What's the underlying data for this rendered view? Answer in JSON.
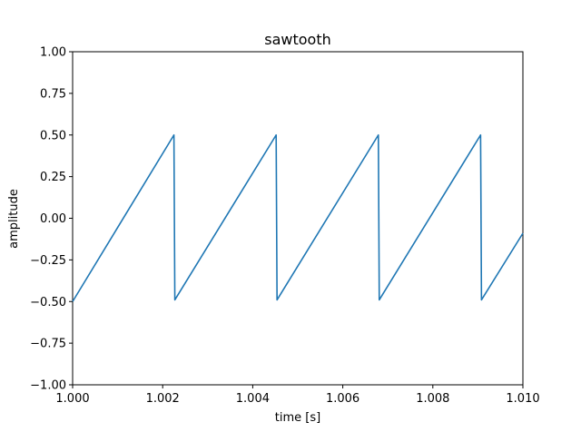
{
  "chart_data": {
    "type": "line",
    "title": "sawtooth",
    "xlabel": "time [s]",
    "ylabel": "amplitude",
    "xlim": [
      1.0,
      1.01
    ],
    "ylim": [
      -1.0,
      1.0
    ],
    "grid": false,
    "x_ticks": [
      1.0,
      1.002,
      1.004,
      1.006,
      1.008,
      1.01
    ],
    "x_tick_labels": [
      "1.000",
      "1.002",
      "1.004",
      "1.006",
      "1.008",
      "1.010"
    ],
    "y_ticks": [
      1.0,
      0.75,
      0.5,
      0.25,
      0.0,
      -0.25,
      -0.5,
      -0.75,
      -1.0
    ],
    "y_tick_labels": [
      "1.00",
      "0.75",
      "0.50",
      "0.25",
      "0.00",
      "−0.25",
      "−0.50",
      "−0.75",
      "−1.00"
    ],
    "series": [
      {
        "name": "sawtooth",
        "color": "#1f77b4",
        "x": [
          1.0,
          1.00225,
          1.00227,
          1.00452,
          1.00454,
          1.00679,
          1.00681,
          1.00906,
          1.00908,
          1.01
        ],
        "y": [
          -0.5,
          0.5,
          -0.49,
          0.5,
          -0.49,
          0.5,
          -0.49,
          0.5,
          -0.49,
          -0.09
        ]
      }
    ]
  }
}
